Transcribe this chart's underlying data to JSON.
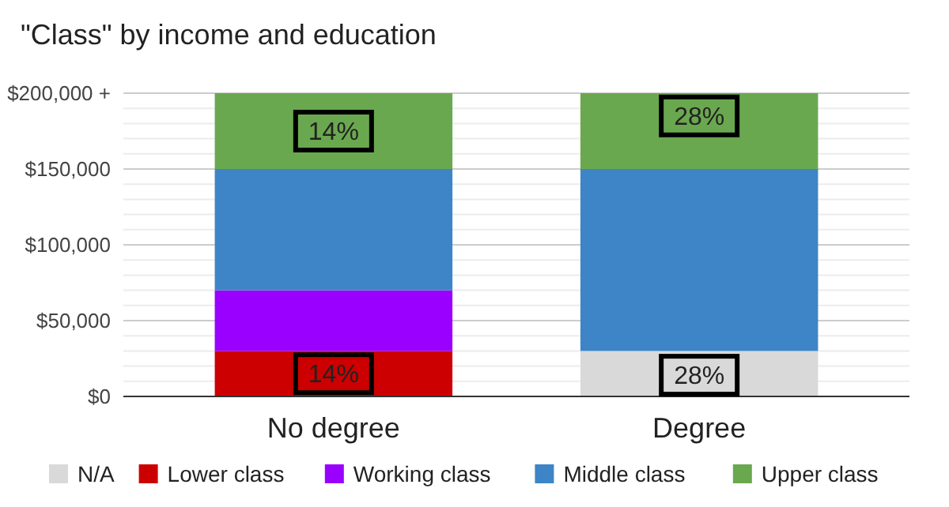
{
  "chart_data": {
    "type": "bar",
    "title": "\"Class\" by income and education",
    "stacked": true,
    "categories": [
      "No degree",
      "Degree"
    ],
    "series": [
      {
        "name": "N/A",
        "color": "#d9d9d9",
        "values": [
          0,
          30000
        ]
      },
      {
        "name": "Lower class",
        "color": "#cc0000",
        "values": [
          30000,
          0
        ]
      },
      {
        "name": "Working class",
        "color": "#9900ff",
        "values": [
          40000,
          0
        ]
      },
      {
        "name": "Middle class",
        "color": "#3d85c6",
        "values": [
          80000,
          120000
        ]
      },
      {
        "name": "Upper class",
        "color": "#6aa84f",
        "values": [
          50000,
          50000
        ]
      }
    ],
    "ylim": [
      0,
      200000
    ],
    "yticks": [
      {
        "value": 0,
        "label": "$0"
      },
      {
        "value": 50000,
        "label": "$50,000"
      },
      {
        "value": 100000,
        "label": "$100,000"
      },
      {
        "value": 150000,
        "label": "$150,000"
      },
      {
        "value": 200000,
        "label": "$200,000 +"
      }
    ],
    "grid": true,
    "legend": "bottom",
    "annotations": [
      "14%",
      "14%",
      "28%",
      "28%"
    ]
  }
}
